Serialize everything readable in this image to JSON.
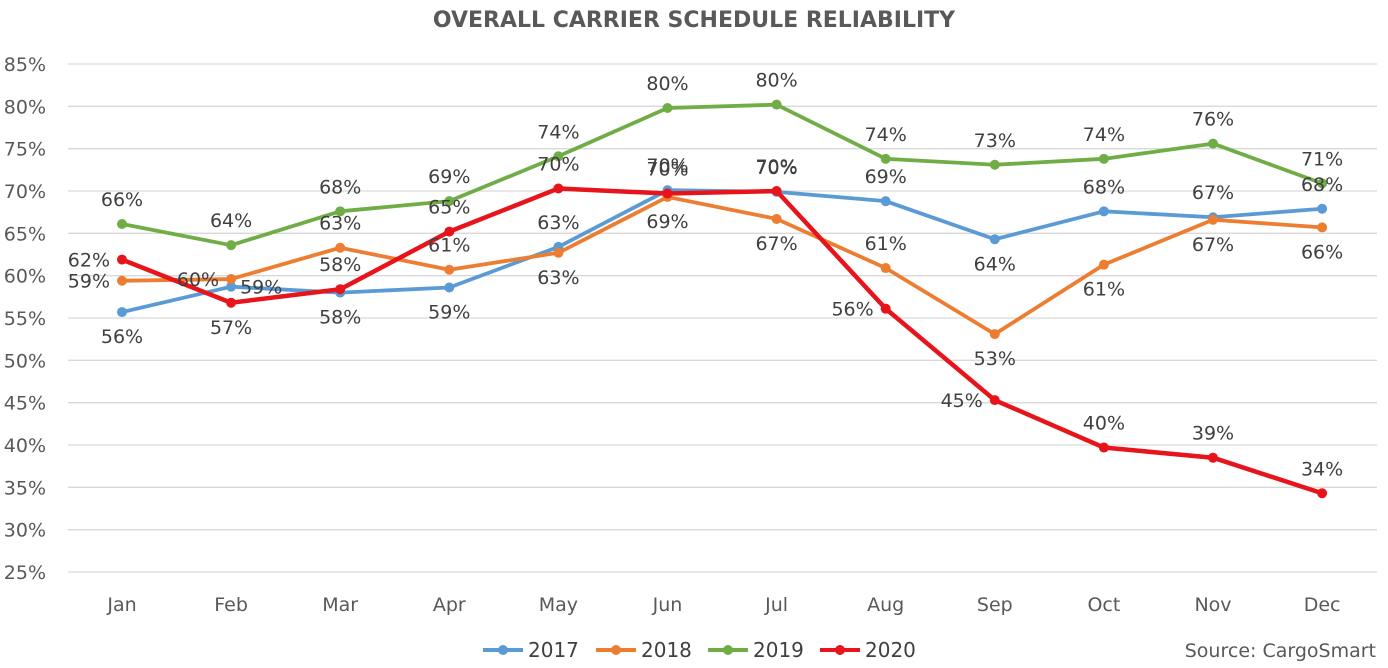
{
  "chart_data": {
    "type": "line",
    "title": "OVERALL CARRIER SCHEDULE RELIABILITY",
    "categories": [
      "Jan",
      "Feb",
      "Mar",
      "Apr",
      "May",
      "Jun",
      "Jul",
      "Aug",
      "Sep",
      "Oct",
      "Nov",
      "Dec"
    ],
    "ylim": [
      25,
      85
    ],
    "yticks": [
      "25%",
      "30%",
      "35%",
      "40%",
      "45%",
      "50%",
      "55%",
      "60%",
      "65%",
      "70%",
      "75%",
      "80%",
      "85%"
    ],
    "grid": true,
    "legend_position": "bottom",
    "series": [
      {
        "name": "2017",
        "color": "#5b9bd5",
        "values": [
          55.7,
          58.7,
          58.0,
          58.6,
          63.4,
          70.1,
          69.9,
          68.8,
          64.3,
          67.6,
          66.9,
          67.9
        ],
        "labels": [
          "56%",
          "59%",
          "58%",
          "59%",
          "63%",
          "70%",
          "70%",
          "69%",
          "64%",
          "68%",
          "67%",
          "68%"
        ]
      },
      {
        "name": "2018",
        "color": "#ed7d31",
        "values": [
          59.4,
          59.6,
          63.3,
          60.7,
          62.7,
          69.3,
          66.7,
          60.9,
          53.1,
          61.3,
          66.6,
          65.7
        ],
        "labels": [
          "59%",
          "60%",
          "63%",
          "61%",
          "63%",
          "69%",
          "67%",
          "61%",
          "53%",
          "61%",
          "67%",
          "66%"
        ]
      },
      {
        "name": "2019",
        "color": "#70ad47",
        "values": [
          66.1,
          63.6,
          67.6,
          68.8,
          74.1,
          79.8,
          80.2,
          73.8,
          73.1,
          73.8,
          75.6,
          70.9
        ],
        "labels": [
          "66%",
          "64%",
          "68%",
          "69%",
          "74%",
          "80%",
          "80%",
          "74%",
          "73%",
          "74%",
          "76%",
          "71%"
        ]
      },
      {
        "name": "2020",
        "color": "#e8141b",
        "values": [
          61.9,
          56.8,
          58.4,
          65.2,
          70.3,
          69.7,
          70.0,
          56.1,
          45.3,
          39.7,
          38.5,
          34.3
        ],
        "labels": [
          "62%",
          "57%",
          "58%",
          "65%",
          "70%",
          "70%",
          "70%",
          "56%",
          "45%",
          "40%",
          "39%",
          "34%"
        ]
      }
    ],
    "source": "Source: CargoSmart"
  }
}
